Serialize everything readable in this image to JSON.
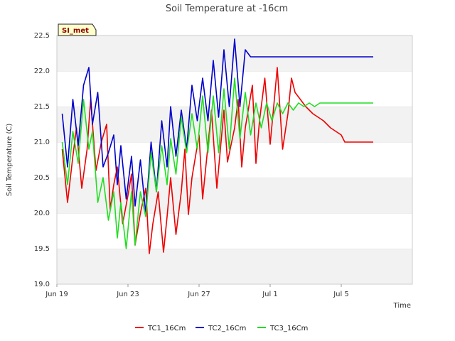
{
  "chart_data": {
    "type": "line",
    "title": "Soil Temperature at -16cm",
    "xlabel": "Time",
    "ylabel": "Soil Temperature (C)",
    "ylim": [
      19.0,
      22.5
    ],
    "yticks": [
      "19.0",
      "19.5",
      "20.0",
      "20.5",
      "21.0",
      "21.5",
      "22.0",
      "22.5"
    ],
    "xlim_days": [
      0,
      20
    ],
    "xticks": [
      {
        "label": "Jun 19",
        "day": 0
      },
      {
        "label": "Jun 23",
        "day": 4
      },
      {
        "label": "Jun 27",
        "day": 8
      },
      {
        "label": "Jul 1",
        "day": 12
      },
      {
        "label": "Jul 5",
        "day": 16
      }
    ],
    "grid": "horizontal bands",
    "legend_position": "bottom",
    "site_badge": "SI_met",
    "series": [
      {
        "name": "TC1_16Cm",
        "color": "#ee0000",
        "x": [
          0.3,
          0.6,
          0.9,
          1.1,
          1.4,
          1.7,
          1.9,
          2.2,
          2.5,
          2.8,
          3.0,
          3.2,
          3.4,
          3.7,
          4.0,
          4.2,
          4.4,
          4.7,
          5.0,
          5.2,
          5.4,
          5.7,
          6.0,
          6.2,
          6.4,
          6.7,
          7.0,
          7.2,
          7.4,
          7.6,
          8.0,
          8.2,
          8.4,
          8.7,
          9.0,
          9.2,
          9.4,
          9.6,
          10.0,
          10.2,
          10.4,
          10.6,
          11.0,
          11.2,
          11.4,
          11.7,
          12.0,
          12.2,
          12.4,
          12.7,
          13.0,
          13.2,
          13.4,
          13.7,
          14.0,
          14.2,
          14.4,
          14.7,
          15.0,
          15.2,
          15.4,
          15.7,
          16.0,
          16.2,
          16.4,
          16.7,
          17.0,
          17.2,
          17.4,
          17.7,
          17.8
        ],
        "y": [
          20.9,
          20.15,
          20.8,
          21.2,
          20.35,
          20.9,
          21.6,
          20.6,
          21.0,
          21.25,
          20.05,
          20.4,
          20.65,
          19.85,
          20.25,
          20.55,
          19.55,
          20.0,
          20.35,
          19.43,
          19.85,
          20.3,
          19.45,
          19.95,
          20.5,
          19.7,
          20.3,
          20.9,
          19.98,
          20.5,
          21.1,
          20.2,
          20.7,
          21.45,
          20.35,
          20.9,
          21.45,
          20.72,
          21.2,
          21.6,
          20.65,
          21.2,
          21.8,
          20.7,
          21.3,
          21.9,
          20.97,
          21.5,
          22.05,
          20.9,
          21.4,
          21.9,
          21.7,
          21.6,
          21.5,
          21.45,
          21.4,
          21.35,
          21.3,
          21.25,
          21.2,
          21.15,
          21.1,
          21.0,
          21.0,
          21.0,
          21.0,
          21.0,
          21.0,
          21.0,
          21.0
        ]
      },
      {
        "name": "TC2_16Cm",
        "color": "#0000cc",
        "x": [
          0.3,
          0.6,
          0.9,
          1.2,
          1.5,
          1.8,
          2.0,
          2.3,
          2.6,
          2.9,
          3.2,
          3.4,
          3.6,
          3.9,
          4.2,
          4.4,
          4.7,
          5.0,
          5.3,
          5.6,
          5.9,
          6.2,
          6.4,
          6.7,
          7.0,
          7.3,
          7.6,
          7.9,
          8.2,
          8.5,
          8.8,
          9.1,
          9.4,
          9.7,
          10.0,
          10.3,
          10.6,
          10.9,
          11.2,
          11.5,
          11.8,
          12.1,
          12.4,
          12.7,
          13.0,
          13.3,
          13.6,
          13.9,
          14.2,
          14.5,
          14.8,
          15.1,
          15.4,
          15.7,
          16.0,
          16.3,
          16.6,
          16.9,
          17.2,
          17.5,
          17.8
        ],
        "y": [
          21.4,
          20.65,
          21.6,
          20.95,
          21.8,
          22.05,
          21.25,
          21.7,
          20.65,
          20.85,
          21.1,
          20.4,
          20.95,
          20.2,
          20.8,
          20.1,
          20.75,
          20.0,
          21.0,
          20.3,
          21.3,
          20.65,
          21.5,
          20.8,
          21.45,
          20.9,
          21.8,
          21.3,
          21.9,
          21.3,
          22.15,
          21.35,
          22.3,
          21.5,
          22.45,
          21.5,
          22.3,
          22.2,
          22.2,
          22.2,
          22.2,
          22.2,
          22.2,
          22.2,
          22.2,
          22.2,
          22.2,
          22.2,
          22.2,
          22.2,
          22.2,
          22.2,
          22.2,
          22.2,
          22.2,
          22.2,
          22.2,
          22.2,
          22.2,
          22.2,
          22.2
        ]
      },
      {
        "name": "TC3_16Cm",
        "color": "#22dd22",
        "x": [
          0.3,
          0.6,
          0.9,
          1.2,
          1.5,
          1.8,
          2.0,
          2.3,
          2.6,
          2.9,
          3.2,
          3.4,
          3.6,
          3.9,
          4.2,
          4.4,
          4.7,
          5.0,
          5.3,
          5.6,
          5.9,
          6.2,
          6.4,
          6.7,
          7.0,
          7.3,
          7.6,
          7.9,
          8.2,
          8.5,
          8.8,
          9.1,
          9.4,
          9.7,
          10.0,
          10.3,
          10.6,
          10.9,
          11.2,
          11.5,
          11.8,
          12.1,
          12.4,
          12.7,
          13.0,
          13.3,
          13.6,
          13.9,
          14.2,
          14.5,
          14.8,
          15.1,
          15.4,
          15.7,
          16.0,
          16.3,
          16.6,
          16.9,
          17.2,
          17.5,
          17.8
        ],
        "y": [
          21.0,
          20.4,
          21.15,
          20.7,
          21.6,
          20.9,
          21.15,
          20.15,
          20.5,
          19.9,
          20.3,
          19.65,
          20.15,
          19.5,
          20.3,
          19.55,
          20.3,
          19.95,
          20.85,
          20.3,
          20.95,
          20.4,
          21.05,
          20.55,
          21.35,
          20.85,
          21.4,
          20.9,
          21.65,
          20.85,
          21.65,
          20.85,
          21.75,
          20.9,
          21.9,
          21.05,
          21.7,
          21.1,
          21.55,
          21.2,
          21.55,
          21.3,
          21.55,
          21.4,
          21.55,
          21.45,
          21.55,
          21.5,
          21.55,
          21.5,
          21.55,
          21.55,
          21.55,
          21.55,
          21.55,
          21.55,
          21.55,
          21.55,
          21.55,
          21.55,
          21.55
        ]
      }
    ]
  }
}
